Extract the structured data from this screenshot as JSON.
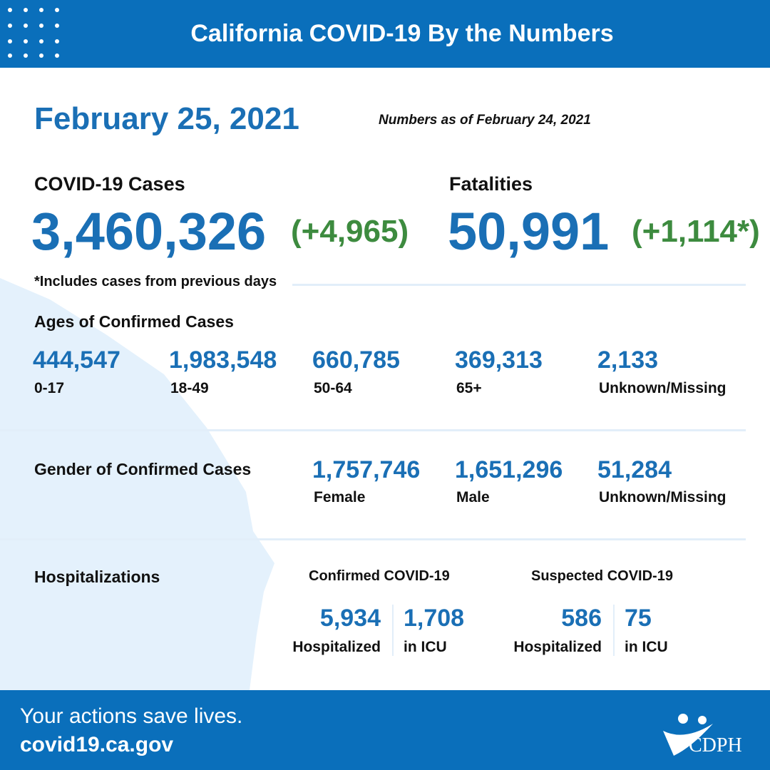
{
  "header": {
    "title": "California COVID-19 By the Numbers"
  },
  "date": "February 25, 2021",
  "as_of": "Numbers as of February 24, 2021",
  "cases": {
    "label": "COVID-19 Cases",
    "value": "3,460,326",
    "change": "(+4,965)"
  },
  "fatalities": {
    "label": "Fatalities",
    "value": "50,991",
    "change": "(+1,114*)"
  },
  "footnote": "*Includes cases from previous days",
  "ages": {
    "title": "Ages of Confirmed Cases",
    "items": [
      {
        "value": "444,547",
        "label": "0-17"
      },
      {
        "value": "1,983,548",
        "label": "18-49"
      },
      {
        "value": "660,785",
        "label": "50-64"
      },
      {
        "value": "369,313",
        "label": "65+"
      },
      {
        "value": "2,133",
        "label": "Unknown/Missing"
      }
    ]
  },
  "gender": {
    "title": "Gender of Confirmed Cases",
    "items": [
      {
        "value": "1,757,746",
        "label": "Female"
      },
      {
        "value": "1,651,296",
        "label": "Male"
      },
      {
        "value": "51,284",
        "label": "Unknown/Missing"
      }
    ]
  },
  "hospitalizations": {
    "title": "Hospitalizations",
    "groups": [
      {
        "title": "Confirmed COVID-19",
        "items": [
          {
            "value": "5,934",
            "label": "Hospitalized"
          },
          {
            "value": "1,708",
            "label": "in ICU"
          }
        ]
      },
      {
        "title": "Suspected COVID-19",
        "items": [
          {
            "value": "586",
            "label": "Hospitalized"
          },
          {
            "value": "75",
            "label": "in ICU"
          }
        ]
      }
    ]
  },
  "footer": {
    "tagline": "Your actions save lives.",
    "url": "covid19.ca.gov",
    "logo": "CDPH"
  }
}
